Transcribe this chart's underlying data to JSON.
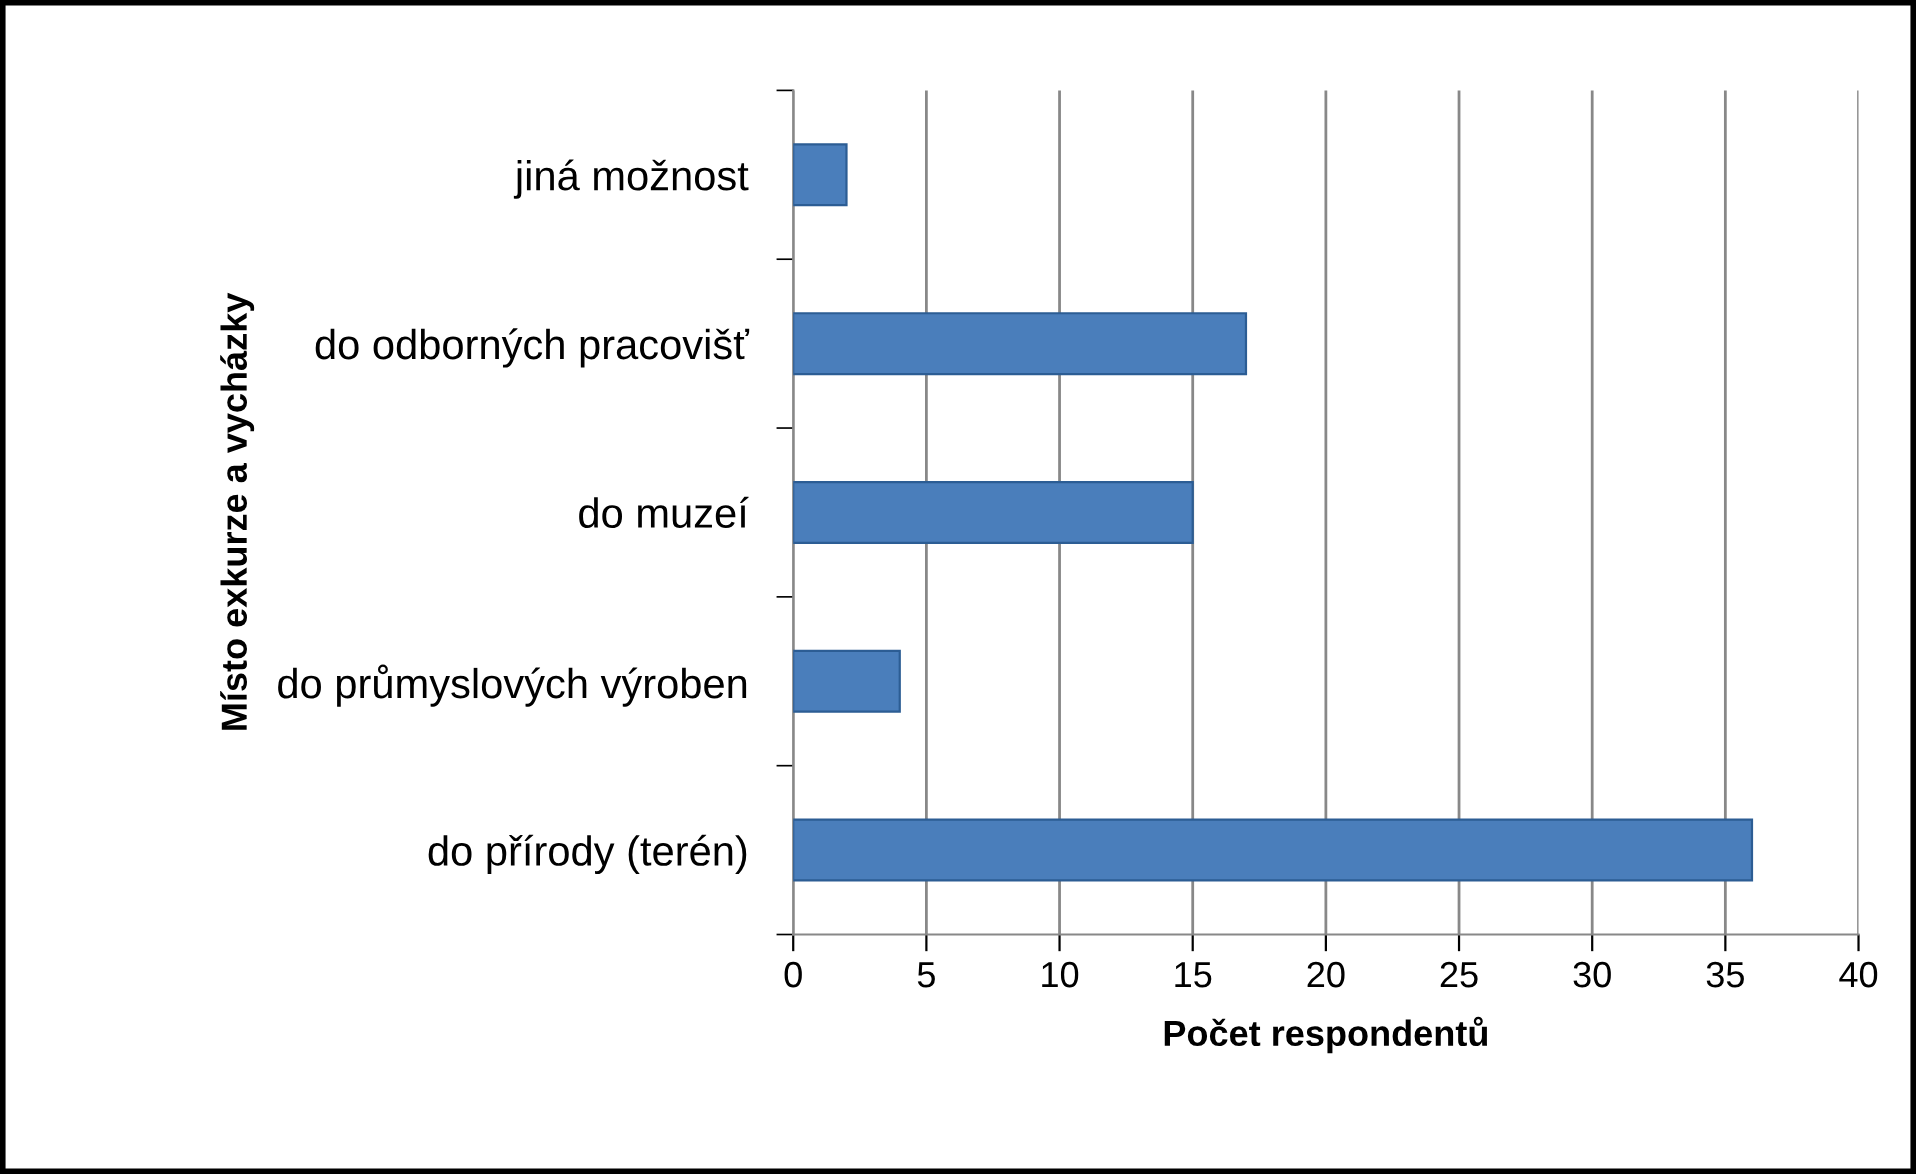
{
  "chart_data": {
    "type": "bar",
    "orientation": "horizontal",
    "categories": [
      "jiná možnost",
      "do odborných pracovišť",
      "do muzeí",
      "do průmyslových výroben",
      "do přírody (terén)"
    ],
    "values": [
      2,
      17,
      15,
      4,
      36
    ],
    "color": "#4a7ebb",
    "xlabel": "Počet respondentů",
    "ylabel": "Místo exkurze a vycházky",
    "xlim": [
      0,
      40
    ],
    "xticks": [
      0,
      5,
      10,
      15,
      20,
      25,
      30,
      35,
      40
    ],
    "grid": "x",
    "legend": false
  }
}
